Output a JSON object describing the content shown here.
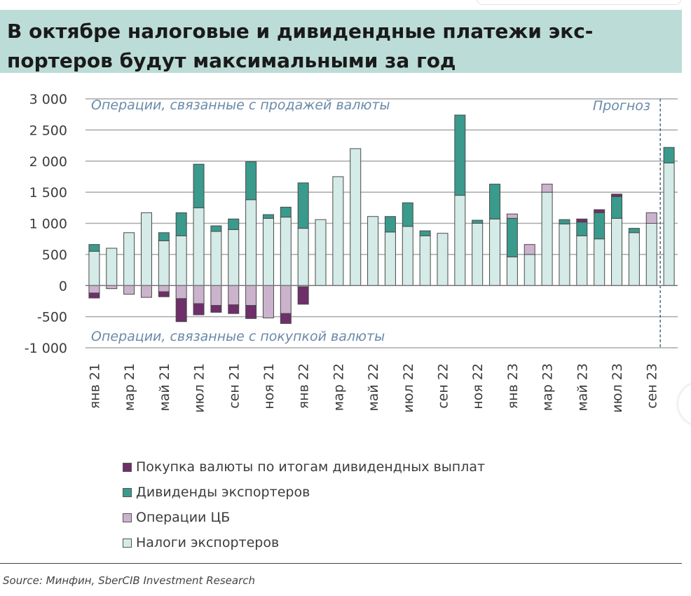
{
  "header": {
    "title": "В октябре налоговые и дивидендные платежи экс-портеров будут максимальными за год"
  },
  "source": "Source: Минфин, SberCIB Investment Research",
  "colors": {
    "header_bg": "#bcdcd7",
    "taxes": "#d4ebe7",
    "dividends": "#3a9a8c",
    "cb_operations": "#cbb3cd",
    "currency_purchase": "#6e2f6a",
    "grid": "#a9a9a9",
    "annotation_text": "#6a8aa8"
  },
  "chart_data": {
    "type": "bar",
    "stacked": true,
    "title": "",
    "xlabel": "",
    "ylabel": "",
    "ylim": [
      -1000,
      3000
    ],
    "yticks": [
      3000,
      2500,
      2000,
      1500,
      1000,
      500,
      0,
      -500,
      -1000
    ],
    "ytick_labels": [
      "3 000",
      "2 500",
      "2 000",
      "1 500",
      "1 000",
      "500",
      "0",
      "-500",
      "-1 000"
    ],
    "grid": true,
    "categories": [
      "янв 21",
      "фев 21",
      "мар 21",
      "апр 21",
      "май 21",
      "июн 21",
      "июл 21",
      "авг 21",
      "сен 21",
      "окт 21",
      "ноя 21",
      "дек 21",
      "янв 22",
      "фев 22",
      "мар 22",
      "апр 22",
      "май 22",
      "июн 22",
      "июл 22",
      "авг 22",
      "сен 22",
      "окт 22",
      "ноя 22",
      "дек 22",
      "янв 23",
      "фев 23",
      "мар 23",
      "апр 23",
      "май 23",
      "июн 23",
      "июл 23",
      "авг 23",
      "сен 23",
      "окт 23"
    ],
    "xtick_labels": [
      "янв 21",
      "",
      "мар 21",
      "",
      "май 21",
      "",
      "июл 21",
      "",
      "сен 21",
      "",
      "ноя 21",
      "",
      "янв 22",
      "",
      "мар 22",
      "",
      "май 22",
      "",
      "июл 22",
      "",
      "сен 22",
      "",
      "ноя 22",
      "",
      "янв 23",
      "",
      "мар 23",
      "",
      "май 23",
      "",
      "июл 23",
      "",
      "сен 23",
      ""
    ],
    "series": [
      {
        "name": "Налоги экспортеров",
        "values": [
          550,
          600,
          850,
          1170,
          720,
          800,
          1250,
          870,
          900,
          1380,
          1080,
          1100,
          920,
          1060,
          1750,
          2200,
          1110,
          860,
          950,
          800,
          840,
          1450,
          1000,
          1070,
          460,
          500,
          1500,
          990,
          800,
          750,
          1080,
          850,
          1000,
          1970
        ]
      },
      {
        "name": "Дивиденды экспортеров",
        "values": [
          110,
          0,
          0,
          0,
          130,
          370,
          700,
          90,
          170,
          610,
          60,
          160,
          730,
          0,
          0,
          0,
          0,
          250,
          380,
          80,
          0,
          1290,
          50,
          560,
          620,
          0,
          0,
          70,
          220,
          420,
          350,
          70,
          0,
          250
        ]
      },
      {
        "name": "Операции ЦБ",
        "values": [
          -120,
          -50,
          -140,
          -190,
          -100,
          -210,
          -290,
          -320,
          -310,
          -320,
          -520,
          -450,
          -20,
          0,
          0,
          0,
          0,
          0,
          0,
          0,
          0,
          0,
          0,
          0,
          70,
          160,
          130,
          0,
          0,
          0,
          0,
          0,
          170,
          0
        ]
      },
      {
        "name": "Покупка валюты по итогам дивидендных выплат",
        "values": [
          -80,
          0,
          0,
          0,
          -80,
          -370,
          -180,
          -110,
          -140,
          -210,
          0,
          -160,
          -280,
          0,
          0,
          0,
          0,
          0,
          0,
          0,
          0,
          0,
          0,
          0,
          0,
          0,
          0,
          0,
          50,
          50,
          40,
          0,
          0,
          0
        ]
      }
    ],
    "forecast_from_index": 33,
    "annotations": {
      "top": "Операции, связанные с продажей валюты",
      "bottom": "Операции, связанные с покупкой валюты",
      "forecast": "Прогноз"
    },
    "legend": [
      {
        "name": "Покупка валюты по итогам дивидендных выплат",
        "color": "#6e2f6a"
      },
      {
        "name": "Дивиденды экспортеров",
        "color": "#3a9a8c"
      },
      {
        "name": "Операции ЦБ",
        "color": "#cbb3cd"
      },
      {
        "name": "Налоги экспортеров",
        "color": "#d4ebe7"
      }
    ],
    "legend_position": "bottom"
  }
}
